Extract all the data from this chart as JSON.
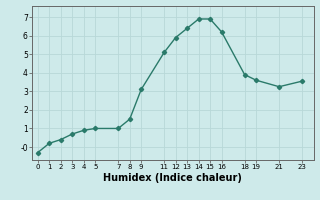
{
  "x": [
    0,
    1,
    2,
    3,
    4,
    5,
    7,
    8,
    9,
    11,
    12,
    13,
    14,
    15,
    16,
    18,
    19,
    21,
    23
  ],
  "y": [
    -0.3,
    0.2,
    0.4,
    0.7,
    0.9,
    1.0,
    1.0,
    1.5,
    3.1,
    5.1,
    5.9,
    6.4,
    6.9,
    6.9,
    6.2,
    3.9,
    3.6,
    3.25,
    3.55
  ],
  "line_color": "#2a7a6a",
  "marker": "D",
  "marker_size": 2.2,
  "line_width": 1.0,
  "bg_color": "#ceeaea",
  "grid_color": "#b8d8d8",
  "xlabel": "Humidex (Indice chaleur)",
  "xlabel_fontsize": 7,
  "ytick_labels": [
    "-0",
    "1",
    "2",
    "3",
    "4",
    "5",
    "6",
    "7"
  ],
  "ytick_values": [
    -0.0,
    1,
    2,
    3,
    4,
    5,
    6,
    7
  ],
  "xtick_values": [
    0,
    1,
    2,
    3,
    4,
    5,
    7,
    8,
    9,
    11,
    12,
    13,
    14,
    15,
    16,
    18,
    19,
    21,
    23
  ],
  "xtick_labels": [
    "0",
    "1",
    "2",
    "3",
    "4",
    "5",
    "7",
    "8",
    "9",
    "11",
    "12",
    "13",
    "14",
    "15",
    "16",
    "18",
    "19",
    "21",
    "23"
  ],
  "ylim": [
    -0.7,
    7.6
  ],
  "xlim": [
    -0.5,
    24.0
  ]
}
